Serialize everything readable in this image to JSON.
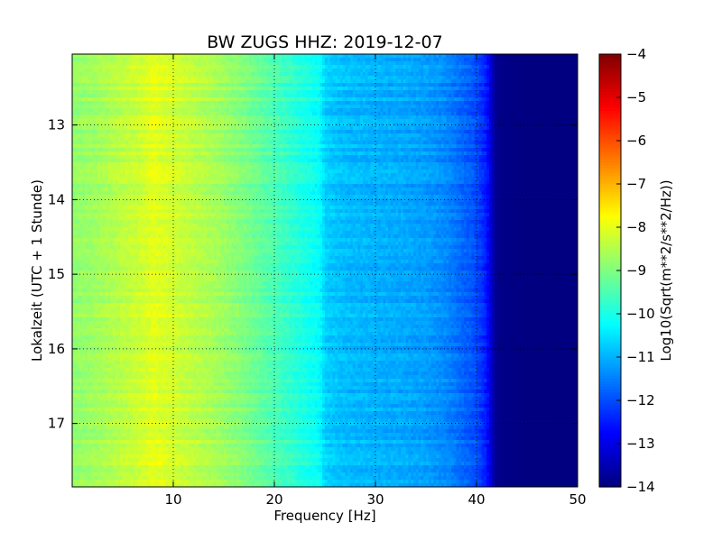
{
  "chart_data": {
    "type": "heatmap",
    "title": "BW ZUGS HHZ: 2019-12-07",
    "xlabel": "Frequency [Hz]",
    "ylabel": "Lokalzeit (UTC + 1 Stunde)",
    "colorbar_label": "Log10(Sqrt(m**2/s**2/Hz))",
    "xlim": [
      0,
      50
    ],
    "ylim": [
      17.85,
      12.05
    ],
    "y_inverted": true,
    "x_ticks": [
      10,
      20,
      30,
      40,
      50
    ],
    "x_tick_labels": [
      "10",
      "20",
      "30",
      "40",
      "50"
    ],
    "y_ticks": [
      13,
      14,
      15,
      16,
      17
    ],
    "y_tick_labels": [
      "13",
      "14",
      "15",
      "16",
      "17"
    ],
    "colorbar_range": [
      -14,
      -4
    ],
    "colorbar_ticks": [
      -4,
      -5,
      -6,
      -7,
      -8,
      -9,
      -10,
      -11,
      -12,
      -13,
      -14
    ],
    "colorbar_tick_labels": [
      "−4",
      "−5",
      "−6",
      "−7",
      "−8",
      "−9",
      "−10",
      "−11",
      "−12",
      "−13",
      "−14"
    ],
    "colormap": "jet",
    "grid": true,
    "mean_profile": {
      "frequency_hz": [
        0,
        2,
        5,
        7,
        8,
        9,
        11,
        14,
        17,
        20,
        23,
        24.5,
        25,
        27,
        30,
        33,
        35,
        37,
        38.5,
        40,
        41,
        41.5,
        42,
        45,
        50
      ],
      "log10_value": [
        -8.8,
        -8.7,
        -8.4,
        -8.2,
        -8.0,
        -8.1,
        -8.3,
        -8.6,
        -9.0,
        -9.5,
        -10.0,
        -10.2,
        -10.7,
        -10.9,
        -11.0,
        -11.1,
        -11.2,
        -11.4,
        -11.7,
        -12.0,
        -12.5,
        -13.3,
        -13.9,
        -14.0,
        -14.0
      ]
    }
  }
}
